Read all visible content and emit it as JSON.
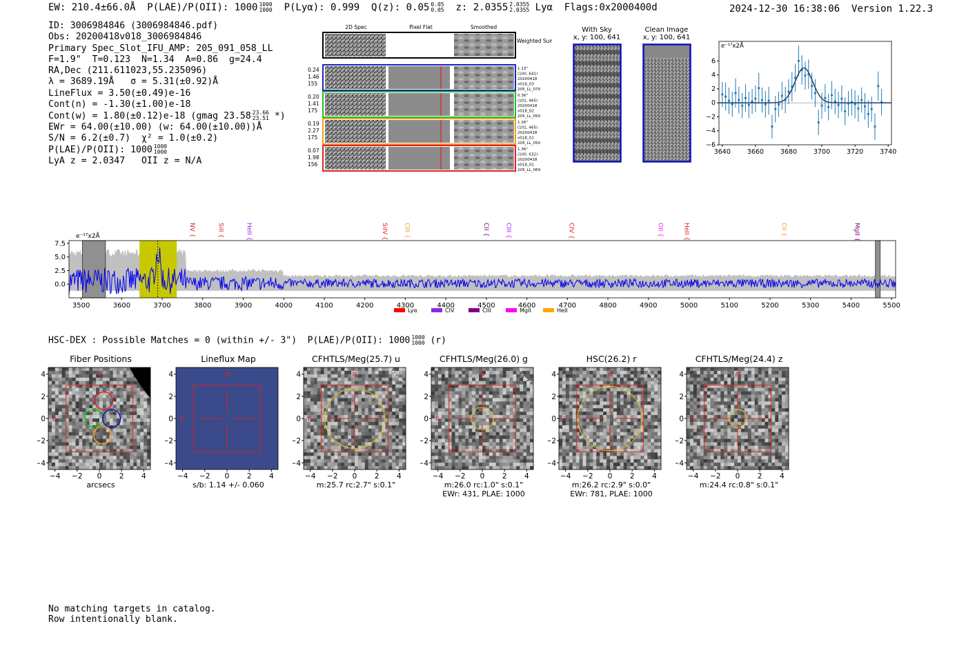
{
  "header": {
    "ew": "EW: 210.4±66.0Å",
    "plae_label": "P(LAE)/P(OII): 1000",
    "plae_hi": "1000",
    "plae_lo": "1000",
    "plya": "P(Lyα): 0.999",
    "qz": "Q(z): 0.05",
    "qz_hi": "0.05",
    "qz_lo": "0.05",
    "z": "z: 2.0355",
    "z_hi": "2.0355",
    "z_lo": "2.0355",
    "line": "Lyα",
    "flags": "Flags:0x2000400d",
    "datetime": "2024-12-30 16:38:06",
    "version": "Version 1.22.3"
  },
  "info": {
    "id": "ID: 3006984846 (3006984846.pdf)",
    "obs": "Obs: 20200418v018_3006984846",
    "slot": "Primary Spec_Slot_IFU_AMP: 205_091_058_LL",
    "params": "F=1.9\"  T=0.123  N=1.34  A=0.86  g=24.4",
    "radec": "RA,Dec (211.611023,55.235096)",
    "lambda": "λ = 3689.19Å   σ = 5.31(±0.92)Å",
    "lineflux": "LineFlux = 3.50(±0.49)e-16",
    "contn": "Cont(n) = -1.30(±1.00)e-18",
    "contw": "Cont(w) = 1.80(±0.12)e-18 (gmag 23.58",
    "contw_hi": "23.66",
    "contw_lo": "23.51",
    "contw_end": "*)",
    "ewr": "EWr = 64.00(±10.00) (w: 64.00(±10.00))Å",
    "sn": "S/N = 6.2(±0.7)  χ² = 1.0(±0.2)",
    "plae": "P(LAE)/P(OII): 1000",
    "plae_hi": "1000",
    "plae_lo": "1000",
    "lyaz": "LyA z = 2.0347   OII z = N/A"
  },
  "cutouts": {
    "col_2d": "2D Spec",
    "col_flat": "Pixel Flat",
    "col_smooth": "Smoothed",
    "weighted": "Weighted Sum",
    "rows": [
      {
        "l1": "0.24",
        "l2": "1.46",
        "l3": "155",
        "r1": "1.13\"",
        "r2": "(100, 641)",
        "r3": "20200418",
        "r4": "v018_03",
        "r5": "205_LL_070",
        "color": "#2020c0"
      },
      {
        "l1": "0.20",
        "l2": "1.41",
        "l3": "175",
        "r1": "0.36\"",
        "r2": "(101, 465)",
        "r3": "20200418",
        "r4": "v018_02",
        "r5": "205_LL_050",
        "color": "#20c020"
      },
      {
        "l1": "0.19",
        "l2": "2.27",
        "l3": "175",
        "r1": "1.26\"",
        "r2": "(101, 465)",
        "r3": "20200418",
        "r4": "v018_01",
        "r5": "205_LL_050",
        "color": "#f0a020"
      },
      {
        "l1": "0.07",
        "l2": "1.98",
        "l3": "156",
        "r1": "1.36\"",
        "r2": "(100, 632)",
        "r3": "20200418",
        "r4": "v018_01",
        "r5": "205_LL_069",
        "color": "#e02020"
      }
    ],
    "with_sky": "With Sky",
    "with_sky_xy": "x, y: 100, 641",
    "clean": "Clean Image",
    "clean_xy": "x, y: 100, 641"
  },
  "hsc": {
    "text": "HSC-DEX : Possible Matches = 0 (within +/- 3\")  P(LAE)/P(OII): 1000",
    "hi": "1000",
    "lo": "1000",
    "suffix": "(r)"
  },
  "panels": [
    {
      "title": "Fiber Positions",
      "cap1": "arcsecs",
      "cap2": ""
    },
    {
      "title": "Lineflux Map",
      "cap1": "s/b: 1.14 +/- 0.060",
      "cap2": ""
    },
    {
      "title": "CFHTLS/Meg(25.7) u",
      "cap1": "m:25.7 rc:2.7\"  s:0.1\"",
      "cap2": ""
    },
    {
      "title": "CFHTLS/Meg(26.0) g",
      "cap1": "m:26.0 rc:1.0\"  s:0.1\"",
      "cap2": "EWr: 431, PLAE: 1000"
    },
    {
      "title": "HSC(26.2) r",
      "cap1": "m:26.2 rc:2.9\"  s:0.0\"",
      "cap2": "EWr: 781, PLAE: 1000"
    },
    {
      "title": "CFHTLS/Meg(24.4) z",
      "cap1": "m:24.4 rc:0.8\"  s:0.1\"",
      "cap2": ""
    }
  ],
  "panel_ticks": [
    "−4",
    "−2",
    "0",
    "2",
    "4"
  ],
  "compass": {
    "n": "N",
    "e": "E"
  },
  "footer": {
    "line1": "No matching targets in catalog.",
    "line2": "Row intentionally blank."
  },
  "chart_data": [
    {
      "type": "line",
      "title": "",
      "ylabel_note": "e⁻¹⁷x2Å",
      "x_range": [
        3638,
        3742
      ],
      "ylim": [
        -6,
        8.8
      ],
      "x_ticks": [
        3640,
        3660,
        3680,
        3700,
        3720,
        3740
      ],
      "y_ticks": [
        -6,
        -4,
        -2,
        0,
        2,
        4,
        6
      ],
      "fit": {
        "center": 3689.19,
        "sigma": 5.31,
        "amplitude": 5.0,
        "baseline": 0.0
      },
      "x": [
        3640,
        3642,
        3644,
        3646,
        3648,
        3650,
        3652,
        3654,
        3656,
        3658,
        3660,
        3662,
        3664,
        3666,
        3668,
        3670,
        3672,
        3674,
        3676,
        3678,
        3680,
        3682,
        3684,
        3686,
        3688,
        3690,
        3692,
        3694,
        3696,
        3698,
        3700,
        3702,
        3704,
        3706,
        3708,
        3710,
        3712,
        3714,
        3716,
        3718,
        3720,
        3722,
        3724,
        3726,
        3728,
        3730,
        3732,
        3734,
        3736
      ],
      "y": [
        1.2,
        0.9,
        0.3,
        -0.2,
        1.4,
        0.4,
        -0.4,
        0.7,
        -0.3,
        0.2,
        0.6,
        2.1,
        0.4,
        -0.2,
        0.3,
        -3.4,
        -0.9,
        -0.2,
        1.0,
        0.4,
        1.6,
        2.3,
        3.6,
        6.0,
        4.7,
        3.9,
        4.1,
        2.4,
        1.4,
        -2.8,
        -0.4,
        0.7,
        -0.6,
        1.1,
        0.2,
        -0.3,
        0.6,
        -1.2,
        -0.1,
        0.1,
        -0.2,
        -0.8,
        0.4,
        -0.5,
        -1.6,
        -0.9,
        -3.4,
        2.4,
        0.1
      ],
      "yerr": [
        1.8,
        2.0,
        1.9,
        1.8,
        2.1,
        1.9,
        1.8,
        2.0,
        1.9,
        1.8,
        1.9,
        2.2,
        1.8,
        1.9,
        2.0,
        1.7,
        1.9,
        1.8,
        2.0,
        1.9,
        1.8,
        2.1,
        2.0,
        2.2,
        2.1,
        2.0,
        2.1,
        1.9,
        2.0,
        1.8,
        1.9,
        2.0,
        1.9,
        2.0,
        1.8,
        1.9,
        1.9,
        2.0,
        1.8,
        1.9,
        2.0,
        1.9,
        1.8,
        1.9,
        2.0,
        1.8,
        1.9,
        2.1,
        1.9
      ]
    },
    {
      "type": "line",
      "title": "",
      "ylabel_note": "e⁻¹⁷x2Å",
      "x_range": [
        3470,
        5510
      ],
      "ylim": [
        -2.5,
        8.0
      ],
      "x_ticks": [
        3500,
        3600,
        3700,
        3800,
        3900,
        4000,
        4100,
        4200,
        4300,
        4400,
        4500,
        4600,
        4700,
        4800,
        4900,
        5000,
        5100,
        5200,
        5300,
        5400,
        5500
      ],
      "y_ticks": [
        0.0,
        2.5,
        5.0,
        7.5
      ],
      "y_tick_labels": [
        "0.0",
        "2.5",
        "5.0",
        "7.5"
      ],
      "seed": 7,
      "highlight_band": [
        3644,
        3736
      ],
      "gray_bands": [
        [
          3503,
          3560
        ],
        [
          5460,
          5472
        ]
      ],
      "line_center": 3689.19,
      "series": [
        {
          "name": "spectrum"
        },
        {
          "name": "error"
        }
      ],
      "line_markers": [
        {
          "label": "NV",
          "x": 3765,
          "color": "#e02020"
        },
        {
          "label": "SiII",
          "x": 3835,
          "color": "#e02020"
        },
        {
          "label": "HeII",
          "x": 3905,
          "color": "#a020f0"
        },
        {
          "label": "SiIV",
          "x": 4240,
          "color": "#e02020"
        },
        {
          "label": "CIII",
          "x": 4295,
          "color": "#f0a020"
        },
        {
          "label": "CII",
          "x": 4490,
          "color": "#800080"
        },
        {
          "label": "CIII",
          "x": 4545,
          "color": "#a020f0"
        },
        {
          "label": "CIV",
          "x": 4700,
          "color": "#e02020"
        },
        {
          "label": "OII",
          "x": 4920,
          "color": "#f020f0"
        },
        {
          "label": "HeII",
          "x": 4985,
          "color": "#e02020"
        },
        {
          "label": "CII",
          "x": 5225,
          "color": "#f0a020"
        },
        {
          "label": "MgII",
          "x": 5405,
          "color": "#800080"
        }
      ],
      "legend": [
        {
          "label": "Lyα",
          "color": "#ff0000"
        },
        {
          "label": "CIV",
          "color": "#8a2be2"
        },
        {
          "label": "CIII",
          "color": "#800080"
        },
        {
          "label": "MgII",
          "color": "#ff00ff"
        },
        {
          "label": "HeII",
          "color": "#ffa500"
        }
      ]
    }
  ]
}
